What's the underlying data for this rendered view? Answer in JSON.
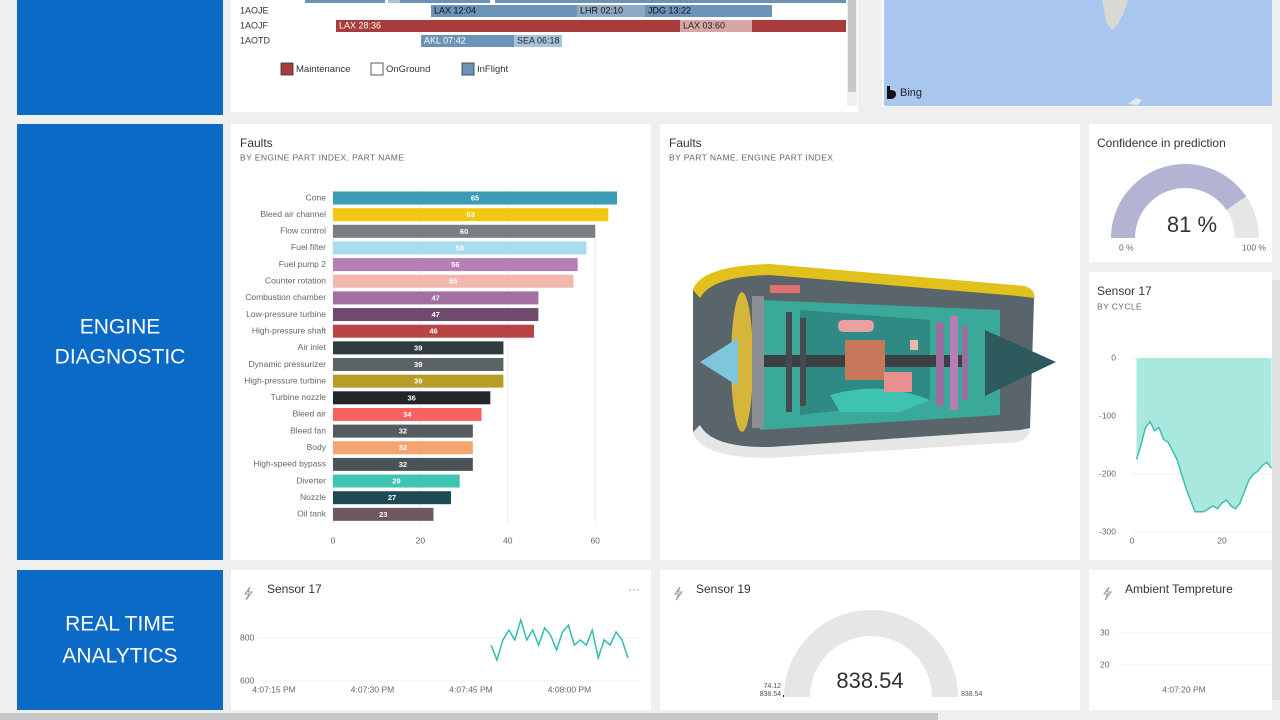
{
  "sections": [
    {
      "lines": [
        "ENGINE",
        "DIAGNOSTIC"
      ]
    },
    {
      "lines": [
        "REAL TIME",
        "ANALYTICS"
      ]
    }
  ],
  "gantt": {
    "rows": [
      {
        "name": "1AOJE",
        "segments": [
          {
            "label": "LAX 12:04",
            "color": "#6b93b8"
          },
          {
            "label": "LHR 02:10",
            "color": "#8ea9c2"
          },
          {
            "label": "JDG 13:22",
            "color": "#6b93b8"
          }
        ]
      },
      {
        "name": "1AOJF",
        "segments": [
          {
            "label": "LAX 28:36",
            "color": "#a83c3c"
          },
          {
            "label": "LAX 03:60",
            "color": "#d8a6a6"
          },
          {
            "label": null,
            "color": "#a83c3c"
          }
        ]
      },
      {
        "name": "1AOTD",
        "segments": [
          {
            "label": "AKL 07:42",
            "color": "#6b93b8"
          },
          {
            "label": "SEA 06:18",
            "color": "#a9c3da"
          }
        ]
      }
    ],
    "legend": [
      {
        "name": "Maintenance",
        "color": "#a83c3c"
      },
      {
        "name": "OnGround",
        "color": "#ffffff"
      },
      {
        "name": "InFlight",
        "color": "#6b93b8"
      }
    ]
  },
  "map": {
    "brand": "Bing"
  },
  "faults_chart": {
    "type": "bar",
    "title": "Faults",
    "subtitle": "BY ENGINE PART INDEX, PART NAME",
    "categories": [
      "Cone",
      "Bleed air channel",
      "Flow control",
      "Fuel filter",
      "Fuel pump 2",
      "Counter rotation",
      "Combustion chamber",
      "Low-pressure turbine",
      "High-pressure shaft",
      "Air inlet",
      "Dynamic pressurizer",
      "High-pressure turbine",
      "Turbine nozzle",
      "Bleed air",
      "Bleed fan",
      "Body",
      "High-speed bypass",
      "Diverter",
      "Nozzle",
      "Oil tank"
    ],
    "values": [
      65,
      63,
      60,
      58,
      56,
      55,
      47,
      47,
      46,
      39,
      39,
      39,
      36,
      34,
      32,
      32,
      32,
      29,
      27,
      23
    ],
    "colors": [
      "#3c9bb5",
      "#f2c811",
      "#777f85",
      "#a6dced",
      "#b57fb5",
      "#f2b8b0",
      "#a26fa0",
      "#6f4a6f",
      "#b94444",
      "#2f3b3f",
      "#5b6568",
      "#b89c28",
      "#222628",
      "#f86161",
      "#555b5e",
      "#f5a46f",
      "#4a5356",
      "#3fc3b3",
      "#1e4a55",
      "#6e5a5e"
    ],
    "xlim": [
      0,
      66
    ],
    "xticks": [
      0,
      20,
      40,
      60
    ],
    "grid": true
  },
  "engine_tile": {
    "title": "Faults",
    "subtitle": "BY PART NAME, ENGINE PART INDEX"
  },
  "confidence_gauge": {
    "type": "gauge",
    "title": "Confidence in prediction",
    "value": 81,
    "value_label": "81 %",
    "min": 0,
    "min_label": "0 %",
    "max": 100,
    "max_label": "100 %",
    "color": "#b3b3d4"
  },
  "sensor17_cycle": {
    "type": "area",
    "title": "Sensor 17",
    "subtitle": "BY CYCLE",
    "x": [
      1,
      2,
      3,
      4,
      5,
      6,
      7,
      8,
      9,
      10,
      11,
      12,
      13,
      14,
      15,
      16,
      17,
      18,
      19,
      20,
      21,
      22,
      23,
      24,
      25,
      26,
      27,
      28,
      29,
      30,
      31
    ],
    "values": [
      -175,
      -150,
      -120,
      -110,
      -125,
      -120,
      -140,
      -145,
      -160,
      -175,
      -200,
      -225,
      -245,
      -265,
      -265,
      -265,
      -260,
      -255,
      -260,
      -250,
      -245,
      -255,
      -260,
      -250,
      -230,
      -210,
      -200,
      -195,
      -185,
      -180,
      -190
    ],
    "color": "#a0e6dc",
    "xlim": [
      0,
      31
    ],
    "xticks": [
      0,
      20
    ],
    "ylim": [
      -300,
      0
    ],
    "yticks": [
      0,
      -100,
      -200,
      -300
    ]
  },
  "sensor17_live": {
    "type": "line",
    "title": "Sensor 17",
    "menu": "···",
    "x_labels": [
      "4:07:15 PM",
      "4:07:30 PM",
      "4:07:45 PM",
      "4:08:00 PM"
    ],
    "values": [
      767,
      698,
      791,
      837,
      791,
      884,
      791,
      837,
      767,
      847,
      814,
      744,
      828,
      860,
      767,
      791,
      767,
      837,
      707,
      791,
      767,
      828,
      791,
      707
    ],
    "color": "#2ebfae",
    "ylim": [
      600,
      900
    ],
    "yticks": [
      600,
      800
    ]
  },
  "sensor19_gauge": {
    "type": "gauge",
    "title": "Sensor 19",
    "value": 838.54,
    "min": 74.12,
    "target": 838.54,
    "max": 838.54,
    "color": "#e6e6e6"
  },
  "ambient_tile": {
    "title": "Ambient Tempreture",
    "x_labels": [
      "4:07:20 PM"
    ],
    "yticks": [
      20,
      30
    ],
    "ylim": [
      15,
      40
    ]
  }
}
